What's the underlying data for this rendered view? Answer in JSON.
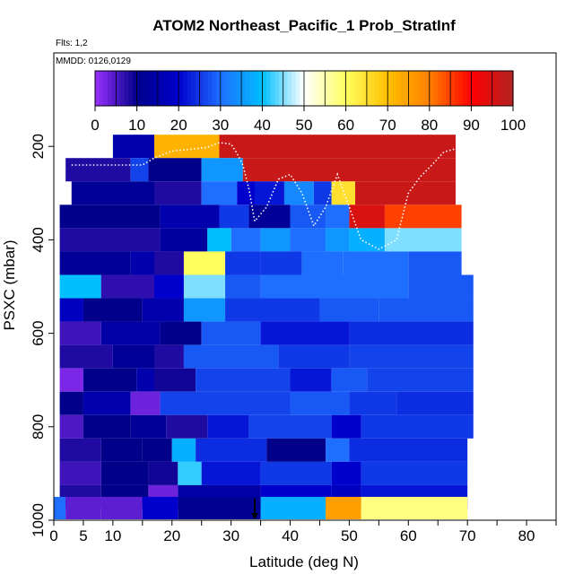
{
  "chart_data": {
    "type": "heatmap",
    "title": "ATOM2 Northeast_Pacific_1 Prob_StratInf",
    "flights_note": "Flts: 1,2",
    "date_note": "MMDD: 0126,0129",
    "xlabel": "Latitude (deg N)",
    "ylabel": "PSXC (mbar)",
    "xlim": [
      0,
      85
    ],
    "ylim": [
      1000,
      0
    ],
    "x_ticks": [
      0,
      5,
      10,
      20,
      30,
      40,
      50,
      60,
      70,
      80
    ],
    "y_ticks": [
      200,
      400,
      600,
      800,
      1000
    ],
    "colorbar": {
      "range": [
        0,
        100
      ],
      "ticks": [
        0,
        10,
        20,
        30,
        40,
        50,
        60,
        70,
        80,
        90,
        100
      ]
    },
    "colors": {
      "scale": [
        "#9b30ff",
        "#00008b",
        "#0000cd",
        "#1e6fff",
        "#00bfff",
        "#ffffff",
        "#ffff60",
        "#ffc000",
        "#ff7f00",
        "#ff0000",
        "#b22222"
      ]
    },
    "flight_marker_lat": 34,
    "levels": [
      {
        "p": 200,
        "segs": [
          [
            10,
            17,
            15
          ],
          [
            17,
            28,
            72
          ],
          [
            28,
            68,
            97
          ]
        ]
      },
      {
        "p": 250,
        "segs": [
          [
            2,
            13,
            8
          ],
          [
            13,
            16,
            26
          ],
          [
            16,
            25,
            10
          ],
          [
            25,
            32,
            35
          ],
          [
            32,
            68,
            97
          ]
        ]
      },
      {
        "p": 300,
        "segs": [
          [
            3,
            17,
            12
          ],
          [
            17,
            25,
            8
          ],
          [
            25,
            31,
            30
          ],
          [
            31,
            34,
            20
          ],
          [
            34,
            39,
            22
          ],
          [
            39,
            44,
            33
          ],
          [
            44,
            47,
            25
          ],
          [
            47,
            51,
            65
          ],
          [
            51,
            68,
            97
          ]
        ]
      },
      {
        "p": 350,
        "segs": [
          [
            1,
            18,
            10
          ],
          [
            18,
            28,
            15
          ],
          [
            28,
            33,
            25
          ],
          [
            33,
            40,
            12
          ],
          [
            40,
            46,
            28
          ],
          [
            46,
            50,
            30
          ],
          [
            50,
            56,
            95
          ],
          [
            56,
            69,
            85
          ]
        ]
      },
      {
        "p": 400,
        "segs": [
          [
            1,
            18,
            8
          ],
          [
            18,
            26,
            13
          ],
          [
            26,
            30,
            40
          ],
          [
            30,
            35,
            30
          ],
          [
            35,
            40,
            35
          ],
          [
            40,
            46,
            30
          ],
          [
            46,
            50,
            35
          ],
          [
            50,
            56,
            38
          ],
          [
            56,
            69,
            45
          ]
        ]
      },
      {
        "p": 450,
        "segs": [
          [
            1,
            13,
            12
          ],
          [
            13,
            17,
            15
          ],
          [
            17,
            22,
            8
          ],
          [
            22,
            29,
            60
          ],
          [
            29,
            35,
            25
          ],
          [
            35,
            42,
            25
          ],
          [
            42,
            49,
            30
          ],
          [
            49,
            60,
            30
          ],
          [
            60,
            69,
            28
          ]
        ]
      },
      {
        "p": 500,
        "segs": [
          [
            1,
            8,
            40
          ],
          [
            8,
            17,
            7
          ],
          [
            17,
            22,
            20
          ],
          [
            22,
            29,
            45
          ],
          [
            29,
            35,
            28
          ],
          [
            35,
            45,
            30
          ],
          [
            45,
            60,
            30
          ],
          [
            60,
            71,
            28
          ]
        ]
      },
      {
        "p": 550,
        "segs": [
          [
            1,
            5,
            18
          ],
          [
            5,
            15,
            10
          ],
          [
            15,
            22,
            15
          ],
          [
            22,
            29,
            35
          ],
          [
            29,
            45,
            25
          ],
          [
            45,
            55,
            28
          ],
          [
            55,
            71,
            28
          ]
        ]
      },
      {
        "p": 600,
        "segs": [
          [
            1,
            8,
            6
          ],
          [
            8,
            18,
            14
          ],
          [
            18,
            25,
            10
          ],
          [
            25,
            35,
            28
          ],
          [
            35,
            50,
            22
          ],
          [
            50,
            71,
            24
          ]
        ]
      },
      {
        "p": 650,
        "segs": [
          [
            1,
            10,
            8
          ],
          [
            10,
            17,
            12
          ],
          [
            17,
            22,
            8
          ],
          [
            22,
            38,
            28
          ],
          [
            38,
            50,
            25
          ],
          [
            50,
            71,
            26
          ]
        ]
      },
      {
        "p": 700,
        "segs": [
          [
            1,
            5,
            2
          ],
          [
            5,
            14,
            10
          ],
          [
            14,
            17,
            15
          ],
          [
            17,
            24,
            9
          ],
          [
            24,
            40,
            26
          ],
          [
            40,
            47,
            22
          ],
          [
            47,
            53,
            28
          ],
          [
            53,
            71,
            26
          ]
        ]
      },
      {
        "p": 750,
        "segs": [
          [
            1,
            5,
            10
          ],
          [
            5,
            13,
            15
          ],
          [
            13,
            18,
            3
          ],
          [
            18,
            40,
            26
          ],
          [
            40,
            50,
            28
          ],
          [
            50,
            58,
            25
          ],
          [
            58,
            71,
            24
          ]
        ]
      },
      {
        "p": 800,
        "segs": [
          [
            1,
            5,
            5
          ],
          [
            5,
            13,
            10
          ],
          [
            13,
            19,
            12
          ],
          [
            19,
            26,
            8
          ],
          [
            26,
            33,
            22
          ],
          [
            33,
            47,
            26
          ],
          [
            47,
            52,
            20
          ],
          [
            52,
            71,
            25
          ]
        ]
      },
      {
        "p": 850,
        "segs": [
          [
            1,
            8,
            8
          ],
          [
            8,
            15,
            10
          ],
          [
            15,
            20,
            10
          ],
          [
            20,
            24,
            38
          ],
          [
            24,
            36,
            24
          ],
          [
            36,
            46,
            10
          ],
          [
            46,
            50,
            30
          ],
          [
            50,
            70,
            24
          ]
        ]
      },
      {
        "p": 900,
        "segs": [
          [
            1,
            8,
            6
          ],
          [
            8,
            16,
            10
          ],
          [
            16,
            21,
            9
          ],
          [
            21,
            25,
            42
          ],
          [
            25,
            35,
            22
          ],
          [
            35,
            47,
            25
          ],
          [
            47,
            52,
            20
          ],
          [
            52,
            70,
            25
          ]
        ]
      },
      {
        "p": 950,
        "segs": [
          [
            1,
            8,
            8
          ],
          [
            8,
            16,
            10
          ],
          [
            16,
            21,
            3
          ],
          [
            21,
            35,
            14
          ],
          [
            35,
            47,
            20
          ],
          [
            47,
            52,
            18
          ],
          [
            52,
            70,
            22
          ]
        ]
      },
      {
        "p": 1000,
        "segs": [
          [
            0,
            2,
            30
          ],
          [
            2,
            8,
            4
          ],
          [
            8,
            15,
            4
          ],
          [
            15,
            21,
            20
          ],
          [
            21,
            35,
            11
          ],
          [
            35,
            46,
            38
          ],
          [
            46,
            52,
            75
          ],
          [
            52,
            70,
            58
          ]
        ]
      }
    ],
    "white_track": [
      [
        3,
        240
      ],
      [
        12,
        240
      ],
      [
        15,
        240
      ],
      [
        17,
        225
      ],
      [
        20,
        210
      ],
      [
        24,
        205
      ],
      [
        26,
        202
      ],
      [
        28,
        192
      ],
      [
        30,
        195
      ],
      [
        31,
        215
      ],
      [
        32,
        240
      ],
      [
        33,
        290
      ],
      [
        34,
        360
      ],
      [
        36,
        330
      ],
      [
        38,
        270
      ],
      [
        40,
        260
      ],
      [
        42,
        300
      ],
      [
        44,
        370
      ],
      [
        46,
        330
      ],
      [
        48,
        260
      ],
      [
        50,
        330
      ],
      [
        52,
        400
      ],
      [
        55,
        420
      ],
      [
        58,
        400
      ],
      [
        60,
        300
      ],
      [
        62,
        265
      ],
      [
        64,
        240
      ],
      [
        66,
        212
      ],
      [
        68,
        205
      ]
    ]
  }
}
